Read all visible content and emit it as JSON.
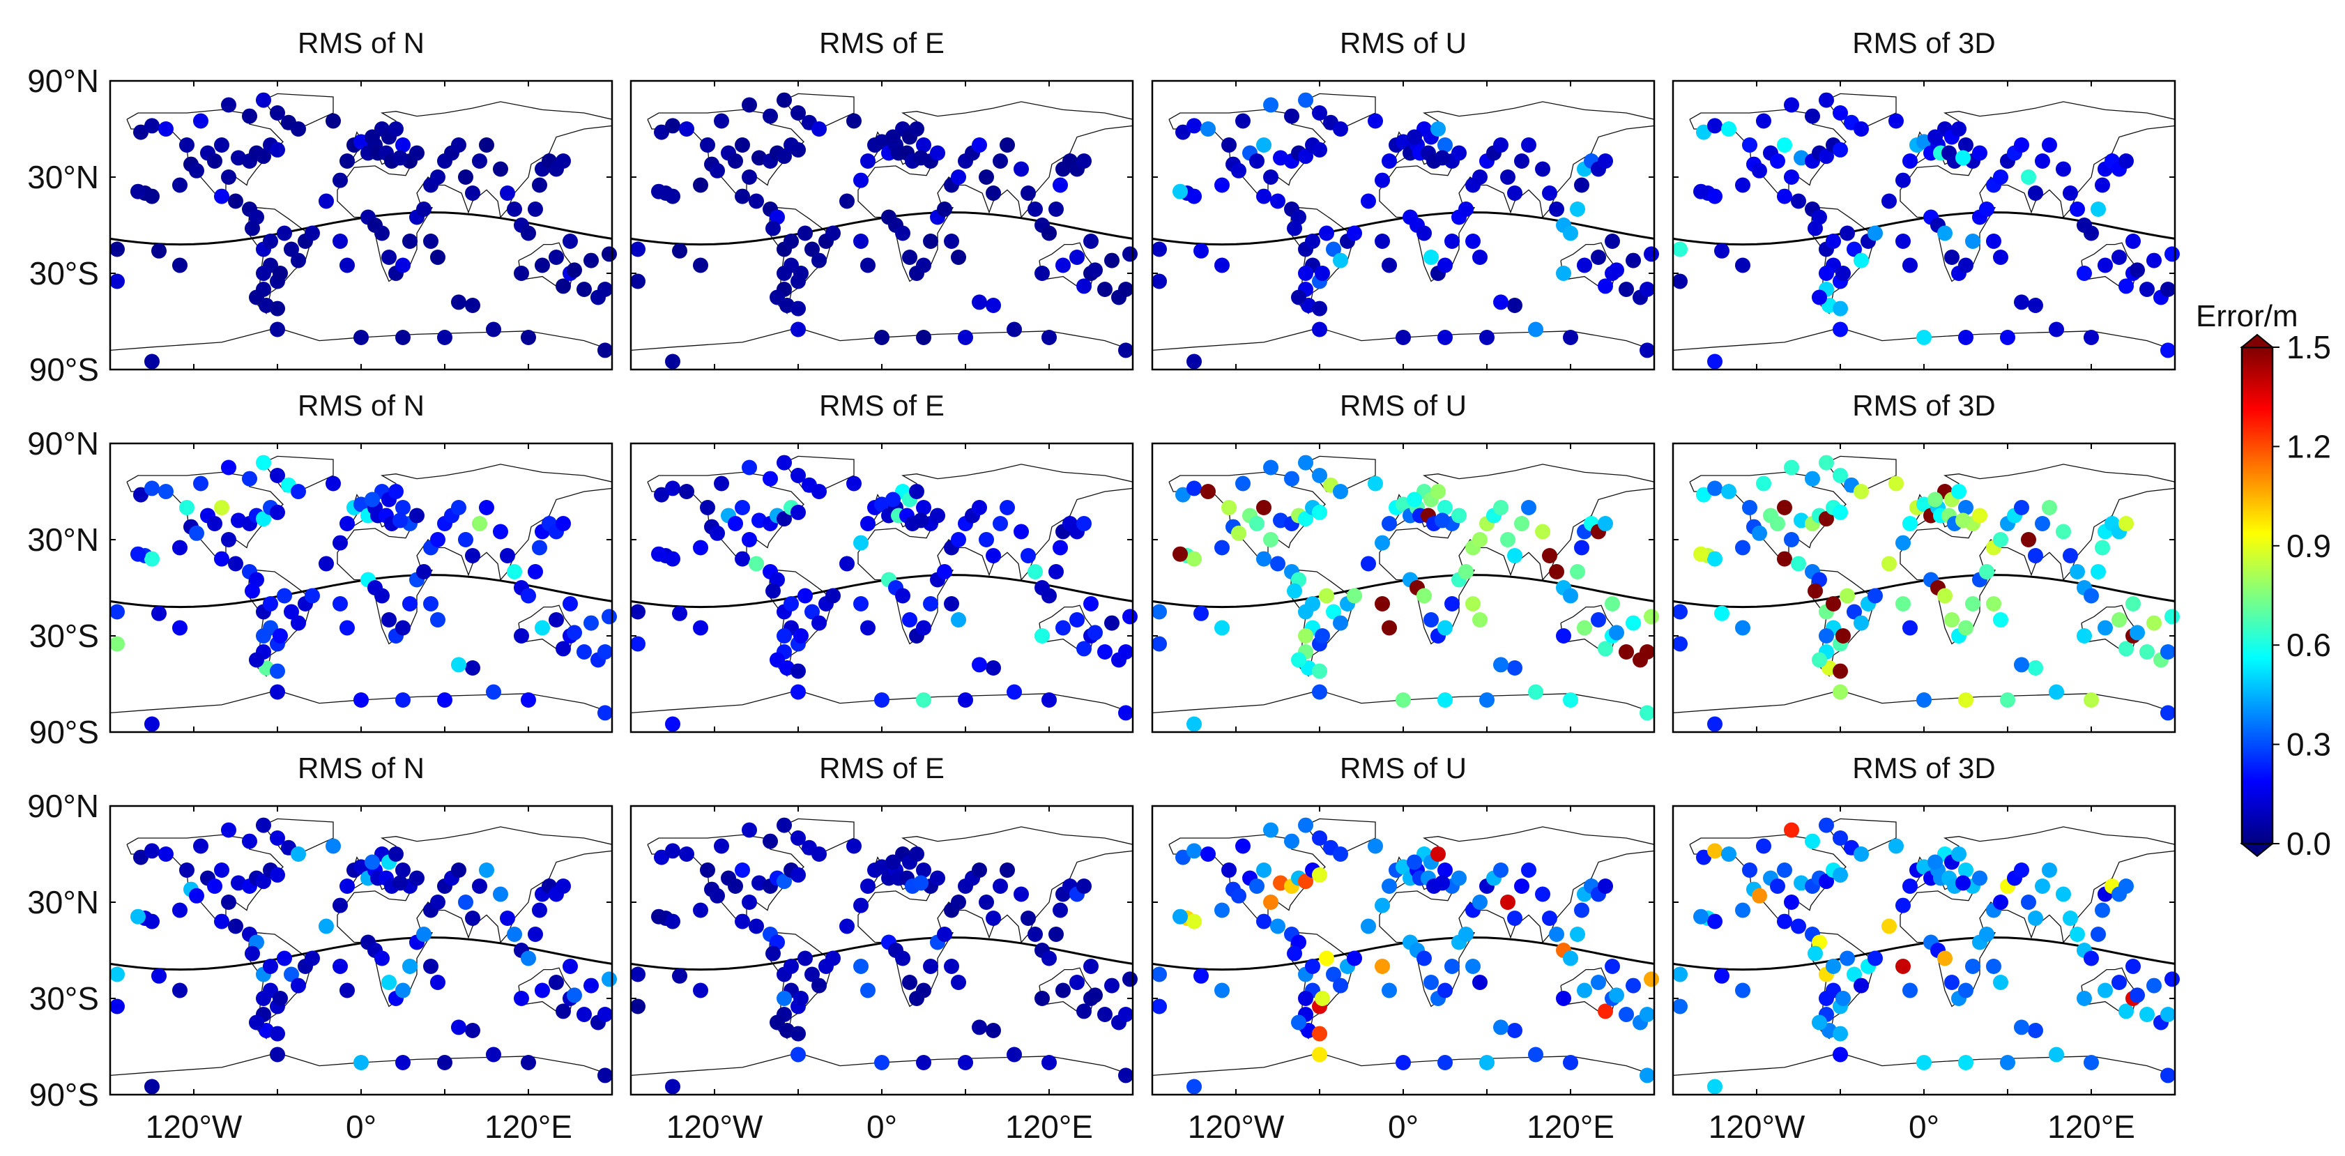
{
  "colorbar": {
    "label": "Error/m",
    "ticks": [
      "0.0",
      "0.3",
      "0.6",
      "0.9",
      "1.2",
      "1.5"
    ],
    "range": [
      0,
      1.5
    ],
    "colormap": [
      "#00007f",
      "#0000ff",
      "#007fff",
      "#00ffff",
      "#7fff7f",
      "#ffff00",
      "#ff7f00",
      "#ff0000",
      "#7f0000"
    ]
  },
  "axes": {
    "lat_ticks": [
      "90°N",
      "30°N",
      "30°S",
      "90°S"
    ],
    "lon_ticks": [
      "120°W",
      "0°",
      "120°E"
    ]
  },
  "chart_data": {
    "type": "scatter",
    "description_unit": "RMS error (m) of GNSS stations on world map, 3 rows x 4 components",
    "lon_range": [
      -180,
      180
    ],
    "lat_range": [
      -90,
      90
    ],
    "titles": [
      "RMS of N",
      "RMS of E",
      "RMS of U",
      "RMS of 3D"
    ],
    "stations": [
      [
        -158,
        58
      ],
      [
        -150,
        62
      ],
      [
        -140,
        60
      ],
      [
        -125,
        50
      ],
      [
        -122,
        38
      ],
      [
        -118,
        34
      ],
      [
        -110,
        45
      ],
      [
        -105,
        40
      ],
      [
        -100,
        50
      ],
      [
        -95,
        30
      ],
      [
        -88,
        42
      ],
      [
        -80,
        40
      ],
      [
        -75,
        45
      ],
      [
        -70,
        43
      ],
      [
        -65,
        50
      ],
      [
        -60,
        47
      ],
      [
        -115,
        65
      ],
      [
        -95,
        75
      ],
      [
        -80,
        68
      ],
      [
        -70,
        78
      ],
      [
        -60,
        70
      ],
      [
        -52,
        64
      ],
      [
        -45,
        60
      ],
      [
        -20,
        65
      ],
      [
        -155,
        20
      ],
      [
        -150,
        18
      ],
      [
        -160,
        21
      ],
      [
        -130,
        25
      ],
      [
        -100,
        18
      ],
      [
        -90,
        15
      ],
      [
        -80,
        10
      ],
      [
        -75,
        5
      ],
      [
        -78,
        -2
      ],
      [
        -70,
        -15
      ],
      [
        -65,
        -25
      ],
      [
        -60,
        -35
      ],
      [
        -70,
        -40
      ],
      [
        -68,
        -50
      ],
      [
        -60,
        -52
      ],
      [
        -50,
        -15
      ],
      [
        -45,
        -22
      ],
      [
        -40,
        -10
      ],
      [
        -35,
        -5
      ],
      [
        -55,
        -5
      ],
      [
        -70,
        -30
      ],
      [
        -75,
        -45
      ],
      [
        -65,
        -10
      ],
      [
        -58,
        -30
      ],
      [
        -25,
        15
      ],
      [
        -15,
        28
      ],
      [
        -10,
        40
      ],
      [
        -5,
        50
      ],
      [
        0,
        52
      ],
      [
        5,
        45
      ],
      [
        10,
        50
      ],
      [
        15,
        60
      ],
      [
        20,
        55
      ],
      [
        25,
        60
      ],
      [
        30,
        50
      ],
      [
        35,
        40
      ],
      [
        40,
        45
      ],
      [
        8,
        55
      ],
      [
        12,
        45
      ],
      [
        18,
        45
      ],
      [
        22,
        40
      ],
      [
        28,
        42
      ],
      [
        -15,
        -10
      ],
      [
        -10,
        -25
      ],
      [
        5,
        5
      ],
      [
        10,
        0
      ],
      [
        15,
        -5
      ],
      [
        20,
        -20
      ],
      [
        25,
        -30
      ],
      [
        30,
        -25
      ],
      [
        35,
        -10
      ],
      [
        40,
        5
      ],
      [
        45,
        10
      ],
      [
        50,
        -10
      ],
      [
        55,
        -20
      ],
      [
        50,
        25
      ],
      [
        55,
        30
      ],
      [
        60,
        40
      ],
      [
        65,
        45
      ],
      [
        70,
        50
      ],
      [
        75,
        30
      ],
      [
        80,
        20
      ],
      [
        85,
        40
      ],
      [
        90,
        50
      ],
      [
        100,
        35
      ],
      [
        105,
        20
      ],
      [
        110,
        10
      ],
      [
        115,
        0
      ],
      [
        120,
        -5
      ],
      [
        125,
        10
      ],
      [
        130,
        35
      ],
      [
        135,
        40
      ],
      [
        140,
        35
      ],
      [
        145,
        40
      ],
      [
        128,
        25
      ],
      [
        150,
        -10
      ],
      [
        140,
        -20
      ],
      [
        130,
        -25
      ],
      [
        115,
        -30
      ],
      [
        145,
        -38
      ],
      [
        150,
        -30
      ],
      [
        153,
        -28
      ],
      [
        160,
        -40
      ],
      [
        170,
        -45
      ],
      [
        175,
        -40
      ],
      [
        178,
        -18
      ],
      [
        165,
        -22
      ],
      [
        -175,
        -15
      ],
      [
        -145,
        -16
      ],
      [
        -130,
        -25
      ],
      [
        80,
        -50
      ],
      [
        70,
        -48
      ],
      [
        120,
        -70
      ],
      [
        60,
        -70
      ],
      [
        0,
        -70
      ],
      [
        -60,
        -65
      ],
      [
        -150,
        -85
      ],
      [
        175,
        -78
      ],
      [
        30,
        -70
      ],
      [
        95,
        -65
      ],
      [
        -175,
        -35
      ]
    ],
    "rows": [
      {
        "N": 0.05,
        "E": 0.05,
        "U": 0.15,
        "3D": 0.18
      },
      {
        "N": 0.25,
        "E": 0.2,
        "U": 0.7,
        "3D": 0.75
      },
      {
        "N": 0.15,
        "E": 0.1,
        "U": 0.4,
        "3D": 0.45
      }
    ]
  }
}
